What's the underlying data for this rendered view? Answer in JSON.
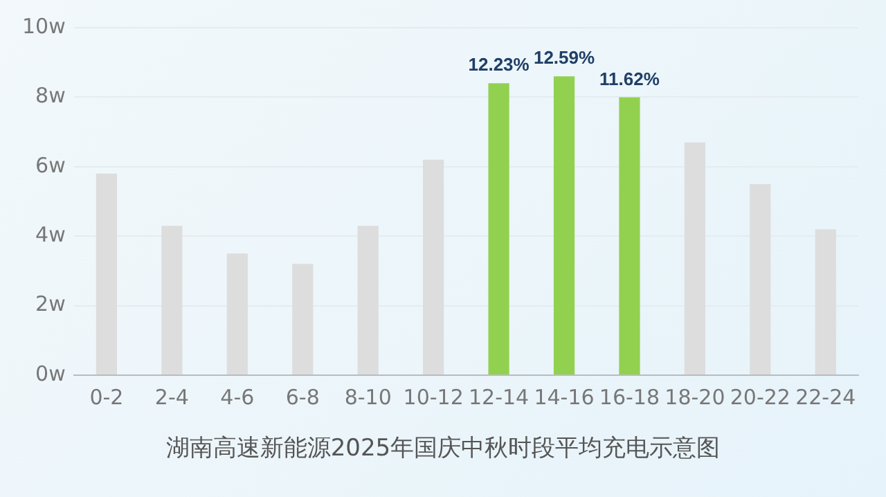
{
  "chart_data": {
    "type": "bar",
    "title": "湖南高速新能源2025年国庆中秋时段平均充电示意图",
    "categories": [
      "0-2",
      "2-4",
      "4-6",
      "6-8",
      "8-10",
      "10-12",
      "12-14",
      "14-16",
      "16-18",
      "18-20",
      "20-22",
      "22-24"
    ],
    "values": [
      5.8,
      4.3,
      3.5,
      3.2,
      4.3,
      6.2,
      8.4,
      8.6,
      8.0,
      6.7,
      5.5,
      4.2
    ],
    "colors": [
      "#dddddd",
      "#dddddd",
      "#dddddd",
      "#dddddd",
      "#dddddd",
      "#dddddd",
      "#92d14f",
      "#92d14f",
      "#92d14f",
      "#dddddd",
      "#dddddd",
      "#dddddd"
    ],
    "annotations": [
      {
        "text": "12.23%",
        "x": "12-14",
        "y": 8.4
      },
      {
        "text": "12.59%",
        "x": "14-16",
        "y": 8.6
      },
      {
        "text": "11.62%",
        "x": "16-18",
        "y": 8.0
      }
    ],
    "ylim": [
      0,
      10
    ],
    "yticks": [
      {
        "value": 0,
        "label": "0w"
      },
      {
        "value": 2,
        "label": "2w"
      },
      {
        "value": 4,
        "label": "4w"
      },
      {
        "value": 6,
        "label": "6w"
      },
      {
        "value": 8,
        "label": "8w"
      },
      {
        "value": 10,
        "label": "10w"
      }
    ],
    "grid": "y",
    "legend": false
  }
}
